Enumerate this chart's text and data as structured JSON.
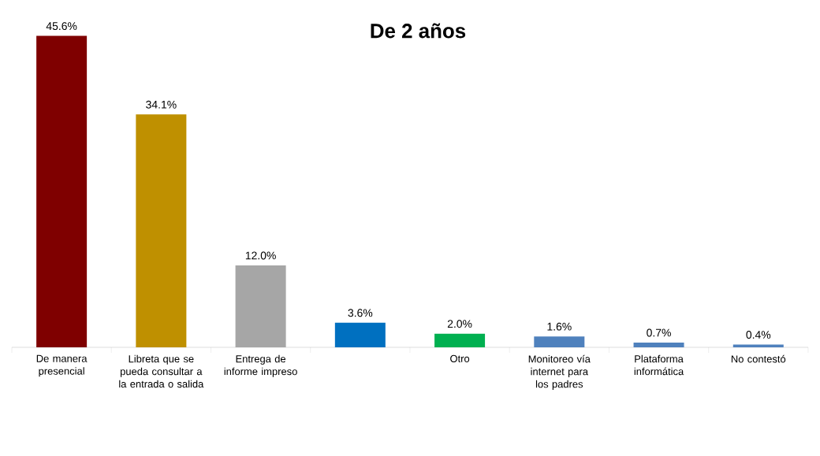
{
  "chart_data": {
    "type": "bar",
    "title": "De 2 años",
    "categories": [
      "De manera presencial",
      "Libreta que se pueda consultar a la entrada o salida",
      "Entrega de informe impreso",
      null,
      "Otro",
      "Monitoreo vía internet para los padres",
      "Plataforma informática",
      "No contestó"
    ],
    "values": [
      45.6,
      34.1,
      12.0,
      3.6,
      2.0,
      1.6,
      0.7,
      0.4
    ],
    "value_labels": [
      "45.6%",
      "34.1%",
      "12.0%",
      "3.6%",
      "2.0%",
      "1.6%",
      "0.7%",
      "0.4%"
    ],
    "colors": [
      "#7f0000",
      "#bf9000",
      "#a6a6a6",
      "#0070c0",
      "#00b050",
      "#4f81bd",
      "#4f81bd",
      "#4f81bd"
    ]
  }
}
